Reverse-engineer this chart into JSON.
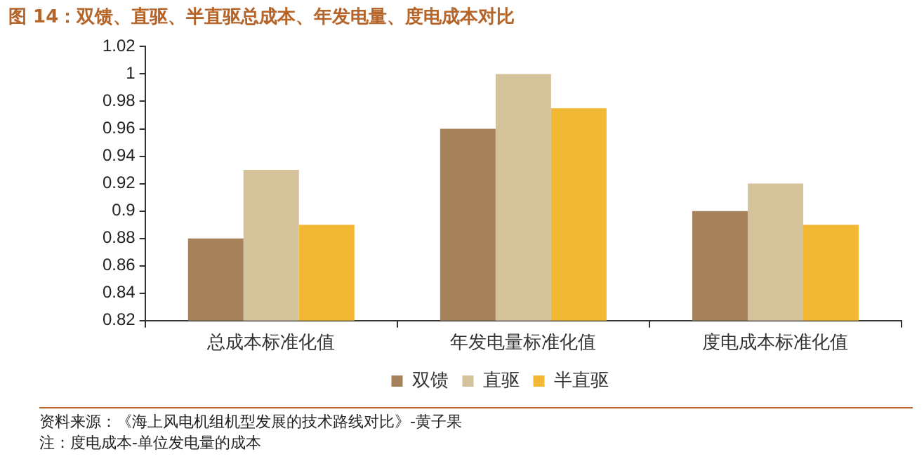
{
  "chart_data": {
    "type": "bar",
    "title": "图 14：双馈、直驱、半直驱总成本、年发电量、度电成本对比",
    "categories": [
      "总成本标准化值",
      "年发电量标准化值",
      "度电成本标准化值"
    ],
    "series": [
      {
        "name": "双馈",
        "color": "#a6825a",
        "values": [
          0.88,
          0.96,
          0.9
        ]
      },
      {
        "name": "直驱",
        "color": "#d4c29a",
        "values": [
          0.93,
          1.0,
          0.92
        ]
      },
      {
        "name": "半直驱",
        "color": "#f2b733",
        "values": [
          0.89,
          0.975,
          0.89
        ]
      }
    ],
    "ylim": [
      0.82,
      1.02
    ],
    "yticks": [
      0.82,
      0.84,
      0.86,
      0.88,
      0.9,
      0.92,
      0.94,
      0.96,
      0.98,
      1,
      1.02
    ],
    "grid": false,
    "legend": "bottom",
    "annotations": [
      "资料来源：《海上风电机组机型发展的技术路线对比》-黄子果",
      "注：度电成本-单位发电量的成本"
    ]
  }
}
